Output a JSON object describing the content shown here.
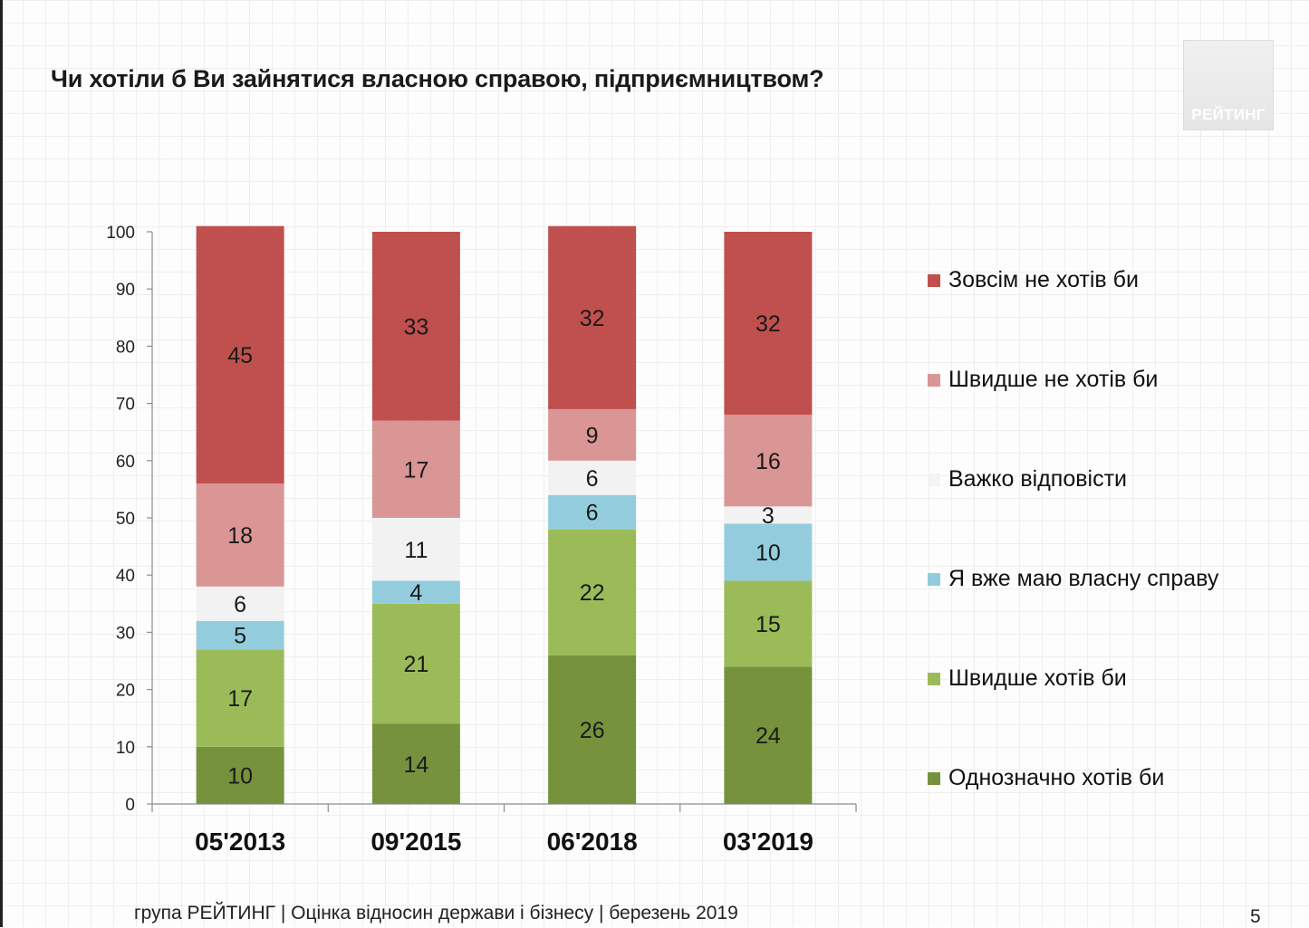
{
  "title": "Чи хотіли б Ви зайнятися власною справою, підприємництвом?",
  "logo": "РЕЙТИНГ",
  "footer": "група РЕЙТИНГ | Оцінка відносин держави і бізнесу  | березень  2019",
  "page_number": "5",
  "chart_data": {
    "type": "bar",
    "stacked": true,
    "categories": [
      "05'2013",
      "09'2015",
      "06'2018",
      "03'2019"
    ],
    "ylim": [
      0,
      100
    ],
    "yticks": [
      0,
      10,
      20,
      30,
      40,
      50,
      60,
      70,
      80,
      90,
      100
    ],
    "legend_position": "right",
    "series": [
      {
        "name": "Однозначно хотів би",
        "color": "#76923c",
        "values": [
          10,
          14,
          26,
          24
        ]
      },
      {
        "name": "Швидше хотів би",
        "color": "#9bbb59",
        "values": [
          17,
          21,
          22,
          15
        ]
      },
      {
        "name": "Я вже маю власну справу",
        "color": "#93cddd",
        "values": [
          5,
          4,
          6,
          10
        ]
      },
      {
        "name": "Важко відповісти",
        "color": "#f2f2f2",
        "values": [
          6,
          11,
          6,
          3
        ]
      },
      {
        "name": "Швидше не хотів би",
        "color": "#d99694",
        "values": [
          18,
          17,
          9,
          16
        ]
      },
      {
        "name": "Зовсім не хотів би",
        "color": "#c0504d",
        "values": [
          45,
          33,
          32,
          32
        ]
      }
    ]
  }
}
